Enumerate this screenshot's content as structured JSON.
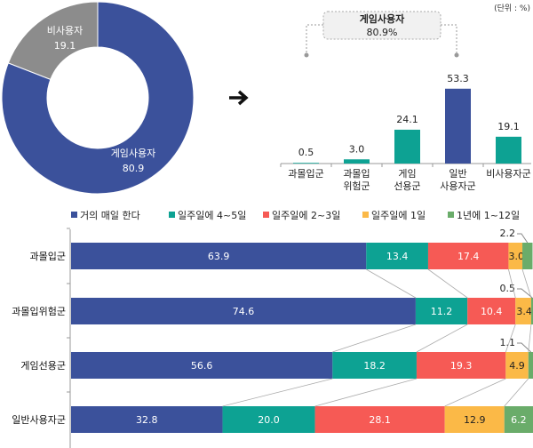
{
  "unit_label": "(단위 : %)",
  "arrow_icon": "right-arrow-icon",
  "colors": {
    "blue": "#3b519b",
    "teal": "#0da293",
    "red": "#f65a55",
    "yellow": "#fbb947",
    "green": "#6aac6a",
    "gray": "#8c8c8c"
  },
  "chart_data": [
    {
      "type": "pie",
      "donut": true,
      "slices": [
        {
          "label": "게임사용자",
          "value": 80.9,
          "color": "#3b519b"
        },
        {
          "label": "비사용자",
          "value": 19.1,
          "color": "#8c8c8c"
        }
      ]
    },
    {
      "type": "bar",
      "categories": [
        [
          "과몰입군"
        ],
        [
          "과몰입",
          "위험군"
        ],
        [
          "게임",
          "선용군"
        ],
        [
          "일반",
          "사용자군"
        ],
        [
          "비사용자군"
        ]
      ],
      "values": [
        0.5,
        3.0,
        24.1,
        53.3,
        19.1
      ],
      "value_labels": [
        "0.5",
        "3.0",
        "24.1",
        "53.3",
        "19.1"
      ],
      "colors": [
        "#0da293",
        "#0da293",
        "#0da293",
        "#3b519b",
        "#0da293"
      ],
      "annotation": {
        "title": "게임사용자",
        "value": "80.9%"
      }
    },
    {
      "type": "bar",
      "orientation": "horizontal",
      "stacked": true,
      "categories": [
        "과몰입군",
        "과몰입위험군",
        "게임선용군",
        "일반사용자군"
      ],
      "series": [
        {
          "name": "거의 매일 한다",
          "color": "#3b519b",
          "values": [
            63.9,
            74.6,
            56.6,
            32.8
          ]
        },
        {
          "name": "일주일에 4~5일",
          "color": "#0da293",
          "values": [
            13.4,
            11.2,
            18.2,
            20.0
          ]
        },
        {
          "name": "일주일에 2~3일",
          "color": "#f65a55",
          "values": [
            17.4,
            10.4,
            19.3,
            28.1
          ]
        },
        {
          "name": "일주일에 1일",
          "color": "#fbb947",
          "values": [
            3.0,
            3.4,
            4.9,
            12.9
          ]
        },
        {
          "name": "1년에 1~12일",
          "color": "#6aac6a",
          "values": [
            2.2,
            0.5,
            1.1,
            6.2
          ]
        }
      ],
      "value_labels": [
        [
          "63.9",
          "13.4",
          "17.4",
          "3.0",
          "2.2"
        ],
        [
          "74.6",
          "11.2",
          "10.4",
          "3.4",
          "0.5"
        ],
        [
          "56.6",
          "18.2",
          "19.3",
          "4.9",
          "1.1"
        ],
        [
          "32.8",
          "20.0",
          "28.1",
          "12.9",
          "6.2"
        ]
      ],
      "legend_position": "top",
      "xlim": [
        0,
        100
      ]
    }
  ]
}
